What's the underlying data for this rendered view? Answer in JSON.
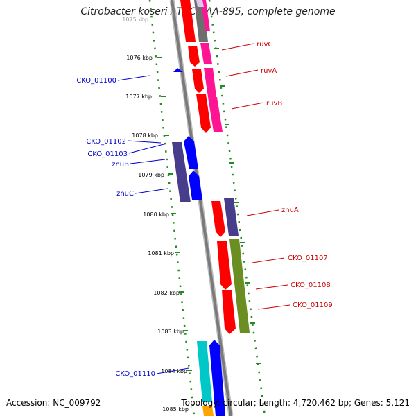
{
  "title": "Citrobacter koseri ATCC BAA-895, complete genome",
  "footer": {
    "accession": "Accession: NC_009792",
    "summary": "Topology: circular; Length: 4,720,462 bp; Genes: 5,121"
  },
  "colors": {
    "red": "#ff0000",
    "magenta": "#ff1493",
    "blue": "#0000ff",
    "indigo": "#483d8b",
    "olive": "#6b8e23",
    "cyan": "#00c8c8",
    "orange": "#ffa500",
    "gray": "#6e6e6e",
    "tick": "#228b22",
    "label_red": "#cc0000",
    "label_blue": "#0000cc"
  },
  "ruler": [
    {
      "label": "1075 kbp"
    },
    {
      "label": "1076 kbp"
    },
    {
      "label": "1077 kbp"
    },
    {
      "label": "1078 kbp"
    },
    {
      "label": "1079 kbp"
    },
    {
      "label": "1080 kbp"
    },
    {
      "label": "1081 kbp"
    },
    {
      "label": "1082 kbp"
    },
    {
      "label": "1083 kbp"
    },
    {
      "label": "1084 kbp"
    },
    {
      "label": "1085 kbp"
    }
  ],
  "genes": [
    {
      "label": "ruvC",
      "strand": "+"
    },
    {
      "label": "ruvA",
      "strand": "+"
    },
    {
      "label": "ruvB",
      "strand": "+"
    },
    {
      "label": "CKO_01100",
      "strand": "-"
    },
    {
      "label": "CKO_01102",
      "strand": "-"
    },
    {
      "label": "CKO_01103",
      "strand": "-"
    },
    {
      "label": "znuB",
      "strand": "-"
    },
    {
      "label": "znuC",
      "strand": "-"
    },
    {
      "label": "znuA",
      "strand": "+"
    },
    {
      "label": "CKO_01107",
      "strand": "+"
    },
    {
      "label": "CKO_01108",
      "strand": "+"
    },
    {
      "label": "CKO_01109",
      "strand": "+"
    },
    {
      "label": "CKO_01110",
      "strand": "-"
    }
  ]
}
